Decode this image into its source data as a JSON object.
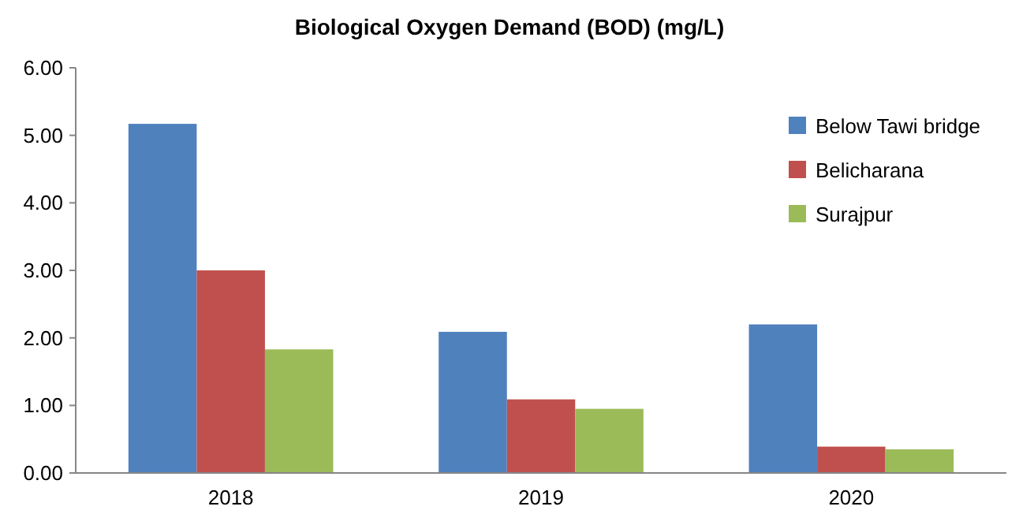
{
  "chart_data": {
    "type": "bar",
    "title": "Biological Oxygen Demand (BOD) (mg/L)",
    "categories": [
      "2018",
      "2019",
      "2020"
    ],
    "series": [
      {
        "name": "Below Tawi bridge",
        "color": "#4f81bd",
        "values": [
          5.17,
          2.09,
          2.2
        ]
      },
      {
        "name": "Belicharana",
        "color": "#c0504d",
        "values": [
          3.0,
          1.09,
          0.39
        ]
      },
      {
        "name": "Surajpur",
        "color": "#9bbb59",
        "values": [
          1.83,
          0.95,
          0.35
        ]
      }
    ],
    "ylim": [
      0,
      6
    ],
    "yticks": [
      {
        "value": 0,
        "label": "0.00"
      },
      {
        "value": 1,
        "label": "1.00"
      },
      {
        "value": 2,
        "label": "2.00"
      },
      {
        "value": 3,
        "label": "3.00"
      },
      {
        "value": 4,
        "label": "4.00"
      },
      {
        "value": 5,
        "label": "5.00"
      },
      {
        "value": 6,
        "label": "6.00"
      }
    ],
    "grid": false,
    "legend": "top right"
  }
}
